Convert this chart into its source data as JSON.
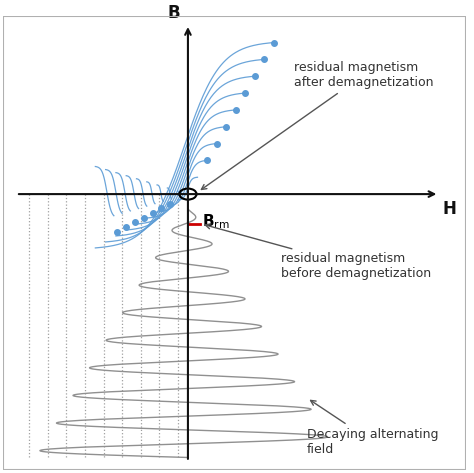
{
  "background_color": "#ffffff",
  "border_color": "#b0b0b0",
  "axis_color": "#111111",
  "hysteresis_color": "#5b9bd5",
  "spiral_color": "#909090",
  "dotted_color": "#888888",
  "brm_color": "#cc0000",
  "annotation_color": "#555555",
  "labels": {
    "B": "B",
    "H": "H",
    "residual_after": "residual magnetism\nafter demagnetization",
    "residual_before": "residual magnetism\nbefore demagnetization",
    "decaying": "Decaying alternating\nfield"
  },
  "num_hysteresis_loops": 9,
  "num_spiral_cycles": 9,
  "xlim": [
    -2.8,
    4.2
  ],
  "ylim": [
    -6.5,
    4.2
  ]
}
